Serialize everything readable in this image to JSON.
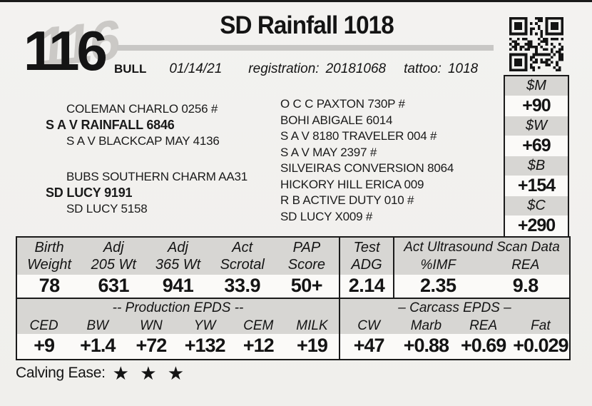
{
  "page": {
    "lot_number": "116",
    "title": "SD Rainfall 1018",
    "sex": "BULL",
    "birth_date": "01/14/21",
    "registration_label": "registration:",
    "registration": "20181068",
    "tattoo_label": "tattoo:",
    "tattoo": "1018",
    "calving_ease_label": "Calving Ease:",
    "calving_ease_stars": "★ ★ ★",
    "calving_ease_rating": 3
  },
  "pedigree": {
    "sire_line": {
      "grandsire": "COLEMAN CHARLO 0256 #",
      "sire": "S A V RAINFALL 6846",
      "granddam": "S A V BLACKCAP MAY 4136"
    },
    "dam_line": {
      "grandsire": "BUBS SOUTHERN CHARM AA31",
      "dam": "SD LUCY 9191",
      "granddam": "SD LUCY 5158"
    },
    "great_grandparents": [
      "O C C PAXTON 730P #",
      "BOHI ABIGALE 6014",
      "S A V 8180 TRAVELER 004 #",
      "S A V MAY 2397 #",
      "SILVEIRAS CONVERSION 8064",
      "HICKORY HILL ERICA 009",
      "R B ACTIVE DUTY 010 #",
      "SD LUCY X009 #"
    ]
  },
  "dollar_indexes": [
    {
      "label": "$M",
      "value": "+90"
    },
    {
      "label": "$W",
      "value": "+69"
    },
    {
      "label": "$B",
      "value": "+154"
    },
    {
      "label": "$C",
      "value": "+290"
    }
  ],
  "performance": {
    "columns": [
      {
        "label1": "Birth",
        "label2": "Weight",
        "value": "78"
      },
      {
        "label1": "Adj",
        "label2": "205 Wt",
        "value": "631"
      },
      {
        "label1": "Adj",
        "label2": "365 Wt",
        "value": "941"
      },
      {
        "label1": "Act",
        "label2": "Scrotal",
        "value": "33.9"
      },
      {
        "label1": "PAP",
        "label2": "Score",
        "value": "50+"
      }
    ],
    "test_adg": {
      "label1": "Test",
      "label2": "ADG",
      "value": "2.14"
    },
    "ultrasound": {
      "title": "Act Ultrasound Scan Data",
      "columns": [
        {
          "label": "%IMF",
          "value": "2.35"
        },
        {
          "label": "REA",
          "value": "9.8"
        }
      ]
    }
  },
  "production_epds": {
    "title": "-- Production EPDS --",
    "columns": [
      {
        "label": "CED",
        "value": "+9"
      },
      {
        "label": "BW",
        "value": "+1.4"
      },
      {
        "label": "WN",
        "value": "+72"
      },
      {
        "label": "YW",
        "value": "+132"
      },
      {
        "label": "CEM",
        "value": "+12"
      },
      {
        "label": "MILK",
        "value": "+19"
      }
    ]
  },
  "carcass_epds": {
    "title": "– Carcass EPDS –",
    "columns": [
      {
        "label": "CW",
        "value": "+47"
      },
      {
        "label": "Marb",
        "value": "+0.88"
      },
      {
        "label": "REA",
        "value": "+0.69"
      },
      {
        "label": "Fat",
        "value": "+0.029"
      }
    ]
  },
  "colors": {
    "paper": "#f2f1ee",
    "ink": "#141414",
    "header-gray": "#d7d6d3",
    "row-white": "#fbfaf8",
    "rule-gray": "#c8c7c5",
    "shadow-gray": "#cbc9c6"
  }
}
